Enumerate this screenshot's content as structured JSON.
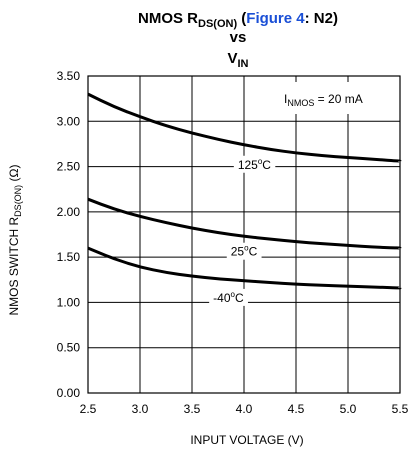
{
  "chart_data": {
    "type": "line",
    "title": {
      "pre": "NMOS R",
      "sub": "DS(ON)",
      "paren_open": " (",
      "link": "Figure 4",
      "rest": ": N2)",
      "line2": "vs",
      "line3": "V",
      "line3_sub": "IN"
    },
    "xlabel": "INPUT VOLTAGE (V)",
    "ylabel": {
      "pre": "NMOS SWITCH R",
      "sub": "DS(ON)",
      "post": " (Ω)"
    },
    "xlim": [
      2.5,
      5.5
    ],
    "ylim": [
      0,
      3.5
    ],
    "xticks": [
      "2.5",
      "3.0",
      "3.5",
      "4.0",
      "4.5",
      "5.0",
      "5.5"
    ],
    "xtick_values": [
      2.5,
      3.0,
      3.5,
      4.0,
      4.5,
      5.0,
      5.5
    ],
    "yticks": [
      "0.00",
      "0.50",
      "1.00",
      "1.50",
      "2.00",
      "2.50",
      "3.00",
      "3.50"
    ],
    "ytick_values": [
      0,
      0.5,
      1.0,
      1.5,
      2.0,
      2.5,
      3.0,
      3.5
    ],
    "grid": true,
    "condition": {
      "pre": "I",
      "sub": "NMOS",
      "post": " = 20 mA"
    },
    "series": [
      {
        "name": "125°C",
        "label_text": "125",
        "label_deg": "o",
        "label_unit": "C",
        "x": [
          2.5,
          2.75,
          3.0,
          3.25,
          3.5,
          3.75,
          4.0,
          4.25,
          4.5,
          4.75,
          5.0,
          5.25,
          5.5
        ],
        "y": [
          3.3,
          3.16,
          3.05,
          2.95,
          2.87,
          2.8,
          2.74,
          2.69,
          2.65,
          2.62,
          2.6,
          2.58,
          2.56
        ]
      },
      {
        "name": "25°C",
        "label_text": "25",
        "label_deg": "o",
        "label_unit": "C",
        "x": [
          2.5,
          2.75,
          3.0,
          3.25,
          3.5,
          3.75,
          4.0,
          4.25,
          4.5,
          4.75,
          5.0,
          5.25,
          5.5
        ],
        "y": [
          2.14,
          2.03,
          1.95,
          1.88,
          1.82,
          1.77,
          1.73,
          1.7,
          1.67,
          1.65,
          1.63,
          1.61,
          1.6
        ]
      },
      {
        "name": "-40°C",
        "label_text": "-40",
        "label_deg": "o",
        "label_unit": "C",
        "x": [
          2.5,
          2.75,
          3.0,
          3.25,
          3.5,
          3.75,
          4.0,
          4.25,
          4.5,
          4.75,
          5.0,
          5.25,
          5.5
        ],
        "y": [
          1.6,
          1.48,
          1.39,
          1.33,
          1.29,
          1.26,
          1.24,
          1.22,
          1.2,
          1.19,
          1.18,
          1.17,
          1.16
        ]
      }
    ],
    "label_positions": [
      {
        "x": 4.1,
        "y": 2.52
      },
      {
        "x": 4.0,
        "y": 1.56
      },
      {
        "x": 3.85,
        "y": 1.05
      }
    ]
  }
}
